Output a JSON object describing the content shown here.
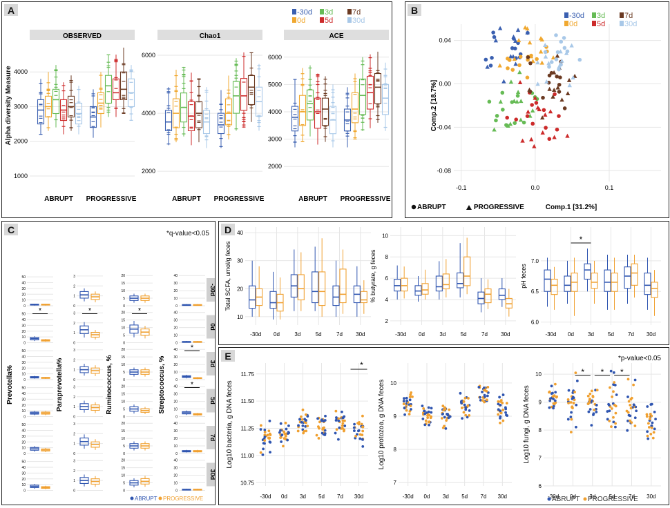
{
  "colors": {
    "m30": "#3a5fb0",
    "d0": "#f0a830",
    "d3": "#66bb55",
    "d5": "#cc2a2a",
    "d7": "#6b3a22",
    "d30": "#a8c8e8",
    "abrupt": "#2f55b0",
    "progressive": "#f0a030",
    "grid": "#e6e6e6",
    "strip": "#dedede"
  },
  "panel_labels": {
    "a": "A",
    "b": "B",
    "c": "C",
    "d": "D",
    "e": "E"
  },
  "legend_days": [
    "-30d",
    "0d",
    "3d",
    "5d",
    "7d",
    "30d"
  ],
  "groups": [
    "ABRUPT",
    "PROGRESSIVE"
  ],
  "panelC_note": "*q-value<0.05",
  "panelE_note": "*p-value<0.05",
  "chart_data": [
    {
      "id": "A",
      "type": "boxplot",
      "ylabel": "Alpha diversity Measure",
      "facets": [
        {
          "title": "OBSERVED",
          "ylim": [
            800,
            4900
          ],
          "yticks": [
            1000,
            2000,
            3000,
            4000
          ],
          "groups": [
            {
              "name": "ABRUPT",
              "boxes": [
                [
                  2200,
                  2500,
                  2900,
                  3200,
                  3800
                ],
                [
                  2300,
                  2700,
                  3000,
                  3300,
                  4000
                ],
                [
                  2400,
                  2800,
                  3200,
                  3500,
                  4200
                ],
                [
                  2200,
                  2600,
                  2900,
                  3200,
                  3700
                ],
                [
                  2300,
                  2700,
                  3000,
                  3300,
                  3900
                ],
                [
                  2200,
                  2500,
                  2800,
                  3100,
                  3600
                ]
              ]
            },
            {
              "name": "PROGRESSIVE",
              "boxes": [
                [
                  2100,
                  2400,
                  2700,
                  3000,
                  3500
                ],
                [
                  2400,
                  2800,
                  3100,
                  3400,
                  4000
                ],
                [
                  2700,
                  3100,
                  3600,
                  3900,
                  4500
                ],
                [
                  2700,
                  3200,
                  3400,
                  3800,
                  4500
                ],
                [
                  2800,
                  3200,
                  3500,
                  4000,
                  4700
                ],
                [
                  2600,
                  3000,
                  3400,
                  3800,
                  4200
                ]
              ]
            }
          ]
        },
        {
          "title": "Chao1",
          "ylim": [
            1600,
            6500
          ],
          "yticks": [
            2000,
            4000,
            6000
          ],
          "groups": [
            {
              "name": "ABRUPT",
              "boxes": [
                [
                  2900,
                  3400,
                  3700,
                  4100,
                  4900
                ],
                [
                  3000,
                  3500,
                  4000,
                  4500,
                  5500
                ],
                [
                  3200,
                  3700,
                  4200,
                  4700,
                  5600
                ],
                [
                  2900,
                  3400,
                  3900,
                  4400,
                  5400
                ],
                [
                  3000,
                  3500,
                  4000,
                  4400,
                  5200
                ],
                [
                  2800,
                  3300,
                  3700,
                  4100,
                  4900
                ]
              ]
            },
            {
              "name": "PROGRESSIVE",
              "boxes": [
                [
                  2800,
                  3300,
                  3600,
                  4000,
                  4800
                ],
                [
                  3100,
                  3600,
                  4000,
                  4500,
                  5300
                ],
                [
                  3400,
                  4000,
                  4600,
                  5100,
                  5900
                ],
                [
                  3500,
                  4100,
                  4600,
                  5200,
                  6100
                ],
                [
                  3700,
                  4300,
                  4900,
                  5300,
                  6100
                ],
                [
                  3400,
                  3900,
                  4400,
                  4900,
                  5700
                ]
              ]
            }
          ]
        },
        {
          "title": "ACE",
          "ylim": [
            1400,
            6600
          ],
          "yticks": [
            2000,
            3000,
            4000,
            5000,
            6000
          ],
          "groups": [
            {
              "name": "ABRUPT",
              "boxes": [
                [
                  2700,
                  3300,
                  3800,
                  4200,
                  5200
                ],
                [
                  2900,
                  3500,
                  4000,
                  4600,
                  5600
                ],
                [
                  3100,
                  3700,
                  4300,
                  4800,
                  5700
                ],
                [
                  2800,
                  3400,
                  4000,
                  4500,
                  5400
                ],
                [
                  2900,
                  3500,
                  4100,
                  4500,
                  5300
                ],
                [
                  2700,
                  3200,
                  3700,
                  4200,
                  5000
                ]
              ]
            },
            {
              "name": "PROGRESSIVE",
              "boxes": [
                [
                  2700,
                  3300,
                  3700,
                  4100,
                  4900
                ],
                [
                  3000,
                  3600,
                  4100,
                  4700,
                  5400
                ],
                [
                  3300,
                  3900,
                  4600,
                  5200,
                  6000
                ],
                [
                  3400,
                  4100,
                  4700,
                  5300,
                  6100
                ],
                [
                  3600,
                  4300,
                  4900,
                  5400,
                  6200
                ],
                [
                  3300,
                  3900,
                  4500,
                  5000,
                  5800
                ]
              ]
            }
          ]
        }
      ]
    },
    {
      "id": "B",
      "type": "scatter",
      "xlabel": "Comp.1 [31.2%]",
      "ylabel": "Comp.2 [18.7%]",
      "xlim": [
        -0.11,
        0.17
      ],
      "ylim": [
        -0.09,
        0.055
      ],
      "xticks": [
        -0.1,
        0.0,
        0.1
      ],
      "yticks": [
        0.04,
        0.0,
        -0.04,
        -0.08
      ],
      "xtick_labels": [
        "-0.1",
        "0.0",
        "0.1"
      ],
      "ytick_labels": [
        "0.04",
        "0.00",
        "-0.04",
        "-0.08"
      ],
      "shape_legend": [
        "ABRUPT",
        "PROGRESSIVE"
      ]
    },
    {
      "id": "C",
      "type": "boxplot-grid",
      "rows": [
        "-30d",
        "0d",
        "3d",
        "5d",
        "7d",
        "30d"
      ],
      "columns": [
        {
          "label": "Prevotella%",
          "yticks": [
            0,
            10,
            20,
            30,
            40,
            50
          ],
          "ymax": 55,
          "values": [
            [
              2,
              2
            ],
            [
              7,
              4
            ],
            [
              4,
              3
            ],
            [
              6,
              6
            ],
            [
              8,
              6
            ],
            [
              7,
              5
            ]
          ],
          "sig_rows": [
            1
          ]
        },
        {
          "label": "Paraprevotella%",
          "yticks": [
            0,
            1,
            2,
            3
          ],
          "ymax": 3.2,
          "values": [
            [
              1.1,
              0.9
            ],
            [
              1.3,
              0.8
            ],
            [
              1.0,
              0.9
            ],
            [
              1.0,
              0.9
            ],
            [
              1.2,
              0.9
            ],
            [
              1.0,
              0.9
            ]
          ],
          "sig_rows": [
            1
          ]
        },
        {
          "label": "Ruminococcus, %",
          "yticks": [
            0,
            5,
            10,
            15,
            20
          ],
          "ymax": 21,
          "values": [
            [
              5,
              5
            ],
            [
              9,
              7
            ],
            [
              5,
              5
            ],
            [
              5,
              4
            ],
            [
              5,
              5
            ],
            [
              5,
              6
            ]
          ],
          "sig_rows": [
            1
          ]
        },
        {
          "label": "Streptococcus, %",
          "yticks": [
            0,
            10,
            20,
            30,
            40
          ],
          "ymax": 42,
          "values": [
            [
              1,
              1
            ],
            [
              1,
              1
            ],
            [
              4,
              2
            ],
            [
              5,
              3
            ],
            [
              3,
              3
            ],
            [
              1,
              1
            ]
          ],
          "sig_rows": [
            2,
            3
          ]
        }
      ],
      "legend": [
        "ABRUPT",
        "PROGRESSIVE"
      ]
    },
    {
      "id": "D",
      "type": "boxplot",
      "categories": [
        "-30d",
        "0d",
        "3d",
        "5d",
        "7d",
        "30d"
      ],
      "plots": [
        {
          "ylabel": "Total  SCFA, umol/g feces",
          "ylim": [
            7,
            42
          ],
          "yticks": [
            10,
            20,
            30,
            40
          ],
          "abrupt": [
            [
              10,
              13,
              16,
              21,
              30
            ],
            [
              9,
              13,
              15,
              19,
              26
            ],
            [
              12,
              17,
              21,
              25,
              34
            ],
            [
              12,
              15,
              19,
              26,
              35
            ],
            [
              10,
              14,
              17,
              21,
              30
            ],
            [
              10,
              15,
              18,
              21,
              28
            ]
          ],
          "progressive": [
            [
              10,
              14,
              17,
              20,
              28
            ],
            [
              9,
              12,
              15,
              18,
              24
            ],
            [
              12,
              16,
              20,
              25,
              33
            ],
            [
              10,
              14,
              19,
              26,
              38
            ],
            [
              11,
              15,
              18,
              27,
              34
            ],
            [
              11,
              15,
              16,
              19,
              23
            ]
          ],
          "sig": null
        },
        {
          "ylabel": "% butyrate, g feces",
          "ylim": [
            1.6,
            10.8
          ],
          "yticks": [
            2,
            4,
            6,
            8,
            10
          ],
          "abrupt": [
            [
              4,
              4.8,
              5.3,
              5.9,
              7.2
            ],
            [
              3.8,
              4.4,
              4.8,
              5.3,
              6.2
            ],
            [
              4,
              4.8,
              5.2,
              6.2,
              7.6
            ],
            [
              4.2,
              5.1,
              5.5,
              6.5,
              9.3
            ],
            [
              2.8,
              3.6,
              4.1,
              4.7,
              6
            ],
            [
              3.3,
              4,
              4.4,
              5,
              6
            ]
          ],
          "progressive": [
            [
              4.1,
              4.8,
              5.3,
              6,
              7.1
            ],
            [
              4,
              4.5,
              4.9,
              5.5,
              6.8
            ],
            [
              4.2,
              5,
              5.4,
              6.4,
              7.8
            ],
            [
              4.5,
              5.3,
              6.2,
              8,
              9.8
            ],
            [
              3.1,
              3.7,
              4.5,
              5,
              5.9
            ],
            [
              2.4,
              3.2,
              3.6,
              4.1,
              5
            ]
          ],
          "sig": null
        },
        {
          "ylabel": "pH feces",
          "ylim": [
            5.95,
            7.55
          ],
          "yticks": [
            6.0,
            6.5,
            7.0
          ],
          "abrupt": [
            [
              6.25,
              6.5,
              6.7,
              6.85,
              7.05
            ],
            [
              6.3,
              6.5,
              6.6,
              6.75,
              7.0
            ],
            [
              6.5,
              6.7,
              6.85,
              6.95,
              7.2
            ],
            [
              6.2,
              6.5,
              6.65,
              6.85,
              7.1
            ],
            [
              6.3,
              6.55,
              6.75,
              6.9,
              7.1
            ],
            [
              6.2,
              6.45,
              6.6,
              6.8,
              7.05
            ]
          ],
          "progressive": [
            [
              6.2,
              6.45,
              6.6,
              6.7,
              6.9
            ],
            [
              6.1,
              6.5,
              6.65,
              6.8,
              7.05
            ],
            [
              6.3,
              6.55,
              6.65,
              6.8,
              7.0
            ],
            [
              6.2,
              6.5,
              6.65,
              6.8,
              7.05
            ],
            [
              6.4,
              6.6,
              6.8,
              6.95,
              7.1
            ],
            [
              6.1,
              6.4,
              6.55,
              6.65,
              6.85
            ]
          ],
          "sig": [
            1,
            2
          ]
        }
      ]
    },
    {
      "id": "E",
      "type": "strip",
      "categories": [
        "-30d",
        "0d",
        "3d",
        "5d",
        "7d",
        "30d"
      ],
      "plots": [
        {
          "ylabel": "Log10 bacteria, g DNA feces",
          "ylim": [
            10.72,
            11.85
          ],
          "yticks": [
            10.75,
            11.0,
            11.25,
            11.5,
            11.75
          ],
          "ytick_labels": [
            "10.75",
            "11.00",
            "11.25",
            "11.50",
            "11.75"
          ],
          "centers": [
            11.15,
            11.22,
            11.3,
            11.25,
            11.3,
            11.22
          ],
          "spreads": [
            0.15,
            0.12,
            0.15,
            0.14,
            0.13,
            0.16
          ],
          "sig_single": [
            5
          ]
        },
        {
          "ylabel": "Log10 protozoa, g DNA feces",
          "ylim": [
            6.9,
            10.6
          ],
          "yticks": [
            7,
            8,
            9,
            10
          ],
          "ytick_labels": [
            "7",
            "8",
            "9",
            "10"
          ],
          "centers": [
            9.4,
            9.0,
            9.1,
            9.3,
            9.6,
            9.3
          ],
          "spreads": [
            0.35,
            0.35,
            0.45,
            0.4,
            0.35,
            0.5
          ],
          "sig_single": []
        },
        {
          "ylabel": "Log10 fungi, g DNA feces",
          "ylim": [
            6.0,
            10.4
          ],
          "yticks": [
            6,
            7,
            8,
            9,
            10
          ],
          "ytick_labels": [
            "6",
            "7",
            "8",
            "9",
            "10"
          ],
          "centers": [
            9.1,
            8.9,
            9.0,
            9.0,
            8.8,
            8.3
          ],
          "spreads": [
            0.5,
            0.9,
            1.1,
            1.0,
            1.1,
            0.9
          ],
          "sig_pairs": [
            [
              1,
              2
            ],
            [
              2,
              3
            ],
            [
              3,
              4
            ]
          ]
        }
      ]
    }
  ]
}
